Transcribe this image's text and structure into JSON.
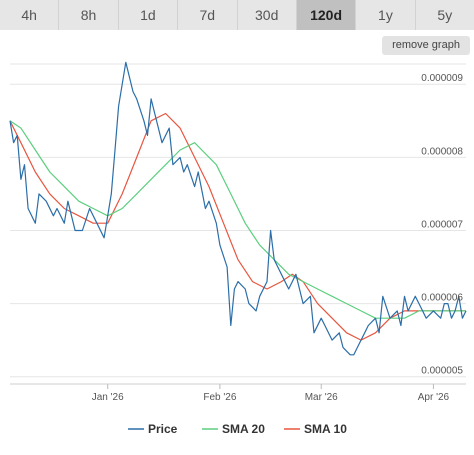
{
  "tabs": [
    {
      "label": "4h",
      "active": false
    },
    {
      "label": "8h",
      "active": false
    },
    {
      "label": "1d",
      "active": false
    },
    {
      "label": "7d",
      "active": false
    },
    {
      "label": "30d",
      "active": false
    },
    {
      "label": "120d",
      "active": true
    },
    {
      "label": "1y",
      "active": false
    },
    {
      "label": "5y",
      "active": false
    }
  ],
  "remove_graph_label": "remove graph",
  "chart_data": {
    "type": "line",
    "ylim": [
      4.9e-06,
      9.4e-06
    ],
    "yticks": [
      {
        "value": 5e-06,
        "label": "0.000005"
      },
      {
        "value": 6e-06,
        "label": "0.000006"
      },
      {
        "value": 7e-06,
        "label": "0.000007"
      },
      {
        "value": 8e-06,
        "label": "0.000008"
      },
      {
        "value": 9e-06,
        "label": "0.000009"
      }
    ],
    "xlim": [
      "2025-12-05",
      "2026-04-10"
    ],
    "xticks": [
      {
        "date": "2026-01-01",
        "label": "Jan '26"
      },
      {
        "date": "2026-02-01",
        "label": "Feb '26"
      },
      {
        "date": "2026-03-01",
        "label": "Mar '26"
      },
      {
        "date": "2026-04-01",
        "label": "Apr '26"
      }
    ],
    "grid": "horizontal",
    "legend_position": "bottom",
    "series": [
      {
        "name": "Price",
        "color": "#2b6ea8",
        "points": [
          [
            "2025-12-05",
            8.5e-06
          ],
          [
            "2025-12-06",
            8.2e-06
          ],
          [
            "2025-12-07",
            8.3e-06
          ],
          [
            "2025-12-08",
            7.7e-06
          ],
          [
            "2025-12-09",
            7.9e-06
          ],
          [
            "2025-12-10",
            7.3e-06
          ],
          [
            "2025-12-12",
            7.1e-06
          ],
          [
            "2025-12-13",
            7.5e-06
          ],
          [
            "2025-12-15",
            7.4e-06
          ],
          [
            "2025-12-17",
            7.2e-06
          ],
          [
            "2025-12-18",
            7.3e-06
          ],
          [
            "2025-12-20",
            7.1e-06
          ],
          [
            "2025-12-21",
            7.4e-06
          ],
          [
            "2025-12-23",
            7e-06
          ],
          [
            "2025-12-25",
            7e-06
          ],
          [
            "2025-12-27",
            7.3e-06
          ],
          [
            "2025-12-29",
            7.1e-06
          ],
          [
            "2025-12-31",
            6.9e-06
          ],
          [
            "2026-01-02",
            7.5e-06
          ],
          [
            "2026-01-03",
            8.1e-06
          ],
          [
            "2026-01-04",
            8.7e-06
          ],
          [
            "2026-01-06",
            9.3e-06
          ],
          [
            "2026-01-08",
            8.9e-06
          ],
          [
            "2026-01-09",
            8.8e-06
          ],
          [
            "2026-01-11",
            8.5e-06
          ],
          [
            "2026-01-12",
            8.3e-06
          ],
          [
            "2026-01-13",
            8.8e-06
          ],
          [
            "2026-01-15",
            8.4e-06
          ],
          [
            "2026-01-16",
            8.2e-06
          ],
          [
            "2026-01-18",
            8.4e-06
          ],
          [
            "2026-01-19",
            7.9e-06
          ],
          [
            "2026-01-21",
            8e-06
          ],
          [
            "2026-01-22",
            7.8e-06
          ],
          [
            "2026-01-23",
            7.9e-06
          ],
          [
            "2026-01-25",
            7.6e-06
          ],
          [
            "2026-01-26",
            7.8e-06
          ],
          [
            "2026-01-28",
            7.3e-06
          ],
          [
            "2026-01-29",
            7.4e-06
          ],
          [
            "2026-01-31",
            7.1e-06
          ],
          [
            "2026-02-01",
            6.8e-06
          ],
          [
            "2026-02-03",
            6.5e-06
          ],
          [
            "2026-02-04",
            5.7e-06
          ],
          [
            "2026-02-05",
            6.2e-06
          ],
          [
            "2026-02-06",
            6.3e-06
          ],
          [
            "2026-02-08",
            6.2e-06
          ],
          [
            "2026-02-09",
            6e-06
          ],
          [
            "2026-02-11",
            5.9e-06
          ],
          [
            "2026-02-12",
            6.1e-06
          ],
          [
            "2026-02-14",
            6.3e-06
          ],
          [
            "2026-02-15",
            7e-06
          ],
          [
            "2026-02-16",
            6.6e-06
          ],
          [
            "2026-02-17",
            6.5e-06
          ],
          [
            "2026-02-18",
            6.4e-06
          ],
          [
            "2026-02-20",
            6.2e-06
          ],
          [
            "2026-02-22",
            6.4e-06
          ],
          [
            "2026-02-23",
            6.2e-06
          ],
          [
            "2026-02-24",
            6e-06
          ],
          [
            "2026-02-26",
            6.1e-06
          ],
          [
            "2026-02-27",
            5.6e-06
          ],
          [
            "2026-03-01",
            5.8e-06
          ],
          [
            "2026-03-02",
            5.7e-06
          ],
          [
            "2026-03-04",
            5.5e-06
          ],
          [
            "2026-03-06",
            5.6e-06
          ],
          [
            "2026-03-07",
            5.4e-06
          ],
          [
            "2026-03-09",
            5.3e-06
          ],
          [
            "2026-03-10",
            5.3e-06
          ],
          [
            "2026-03-11",
            5.4e-06
          ],
          [
            "2026-03-13",
            5.6e-06
          ],
          [
            "2026-03-14",
            5.7e-06
          ],
          [
            "2026-03-16",
            5.8e-06
          ],
          [
            "2026-03-17",
            5.6e-06
          ],
          [
            "2026-03-18",
            6.1e-06
          ],
          [
            "2026-03-20",
            5.8e-06
          ],
          [
            "2026-03-22",
            5.9e-06
          ],
          [
            "2026-03-23",
            5.7e-06
          ],
          [
            "2026-03-24",
            6.1e-06
          ],
          [
            "2026-03-25",
            5.9e-06
          ],
          [
            "2026-03-27",
            6.1e-06
          ],
          [
            "2026-03-28",
            6e-06
          ],
          [
            "2026-03-30",
            5.8e-06
          ],
          [
            "2026-04-01",
            5.9e-06
          ],
          [
            "2026-04-03",
            5.8e-06
          ],
          [
            "2026-04-04",
            6e-06
          ],
          [
            "2026-04-05",
            6e-06
          ],
          [
            "2026-04-06",
            5.8e-06
          ],
          [
            "2026-04-07",
            5.9e-06
          ],
          [
            "2026-04-08",
            6.1e-06
          ],
          [
            "2026-04-09",
            5.8e-06
          ],
          [
            "2026-04-10",
            5.9e-06
          ]
        ]
      },
      {
        "name": "SMA 20",
        "color": "#5ccf7f",
        "points": [
          [
            "2025-12-05",
            8.5e-06
          ],
          [
            "2025-12-08",
            8.4e-06
          ],
          [
            "2025-12-12",
            8.1e-06
          ],
          [
            "2025-12-16",
            7.8e-06
          ],
          [
            "2025-12-20",
            7.6e-06
          ],
          [
            "2025-12-24",
            7.4e-06
          ],
          [
            "2025-12-28",
            7.3e-06
          ],
          [
            "2026-01-01",
            7.2e-06
          ],
          [
            "2026-01-05",
            7.3e-06
          ],
          [
            "2026-01-09",
            7.5e-06
          ],
          [
            "2026-01-13",
            7.7e-06
          ],
          [
            "2026-01-17",
            7.9e-06
          ],
          [
            "2026-01-21",
            8.1e-06
          ],
          [
            "2026-01-25",
            8.2e-06
          ],
          [
            "2026-01-27",
            8.1e-06
          ],
          [
            "2026-01-31",
            7.9e-06
          ],
          [
            "2026-02-04",
            7.5e-06
          ],
          [
            "2026-02-08",
            7.1e-06
          ],
          [
            "2026-02-12",
            6.8e-06
          ],
          [
            "2026-02-16",
            6.6e-06
          ],
          [
            "2026-02-20",
            6.4e-06
          ],
          [
            "2026-02-24",
            6.3e-06
          ],
          [
            "2026-02-28",
            6.2e-06
          ],
          [
            "2026-03-04",
            6.1e-06
          ],
          [
            "2026-03-08",
            6e-06
          ],
          [
            "2026-03-12",
            5.9e-06
          ],
          [
            "2026-03-16",
            5.8e-06
          ],
          [
            "2026-03-20",
            5.8e-06
          ],
          [
            "2026-03-24",
            5.8e-06
          ],
          [
            "2026-03-28",
            5.9e-06
          ],
          [
            "2026-04-01",
            5.9e-06
          ],
          [
            "2026-04-05",
            5.9e-06
          ],
          [
            "2026-04-10",
            5.9e-06
          ]
        ]
      },
      {
        "name": "SMA 10",
        "color": "#e8553f",
        "points": [
          [
            "2025-12-05",
            8.5e-06
          ],
          [
            "2025-12-08",
            8.2e-06
          ],
          [
            "2025-12-12",
            7.8e-06
          ],
          [
            "2025-12-16",
            7.5e-06
          ],
          [
            "2025-12-20",
            7.3e-06
          ],
          [
            "2025-12-24",
            7.2e-06
          ],
          [
            "2025-12-28",
            7.1e-06
          ],
          [
            "2026-01-01",
            7.1e-06
          ],
          [
            "2026-01-05",
            7.5e-06
          ],
          [
            "2026-01-09",
            8e-06
          ],
          [
            "2026-01-13",
            8.5e-06
          ],
          [
            "2026-01-17",
            8.6e-06
          ],
          [
            "2026-01-21",
            8.4e-06
          ],
          [
            "2026-01-25",
            8e-06
          ],
          [
            "2026-01-29",
            7.6e-06
          ],
          [
            "2026-02-02",
            7.1e-06
          ],
          [
            "2026-02-06",
            6.6e-06
          ],
          [
            "2026-02-10",
            6.3e-06
          ],
          [
            "2026-02-14",
            6.2e-06
          ],
          [
            "2026-02-18",
            6.3e-06
          ],
          [
            "2026-02-21",
            6.4e-06
          ],
          [
            "2026-02-24",
            6.3e-06
          ],
          [
            "2026-02-28",
            6e-06
          ],
          [
            "2026-03-04",
            5.8e-06
          ],
          [
            "2026-03-08",
            5.6e-06
          ],
          [
            "2026-03-12",
            5.5e-06
          ],
          [
            "2026-03-16",
            5.6e-06
          ],
          [
            "2026-03-20",
            5.8e-06
          ],
          [
            "2026-03-24",
            5.9e-06
          ],
          [
            "2026-03-28",
            5.9e-06
          ],
          [
            "2026-04-01",
            5.9e-06
          ],
          [
            "2026-04-05",
            5.9e-06
          ],
          [
            "2026-04-10",
            5.9e-06
          ]
        ]
      }
    ]
  }
}
